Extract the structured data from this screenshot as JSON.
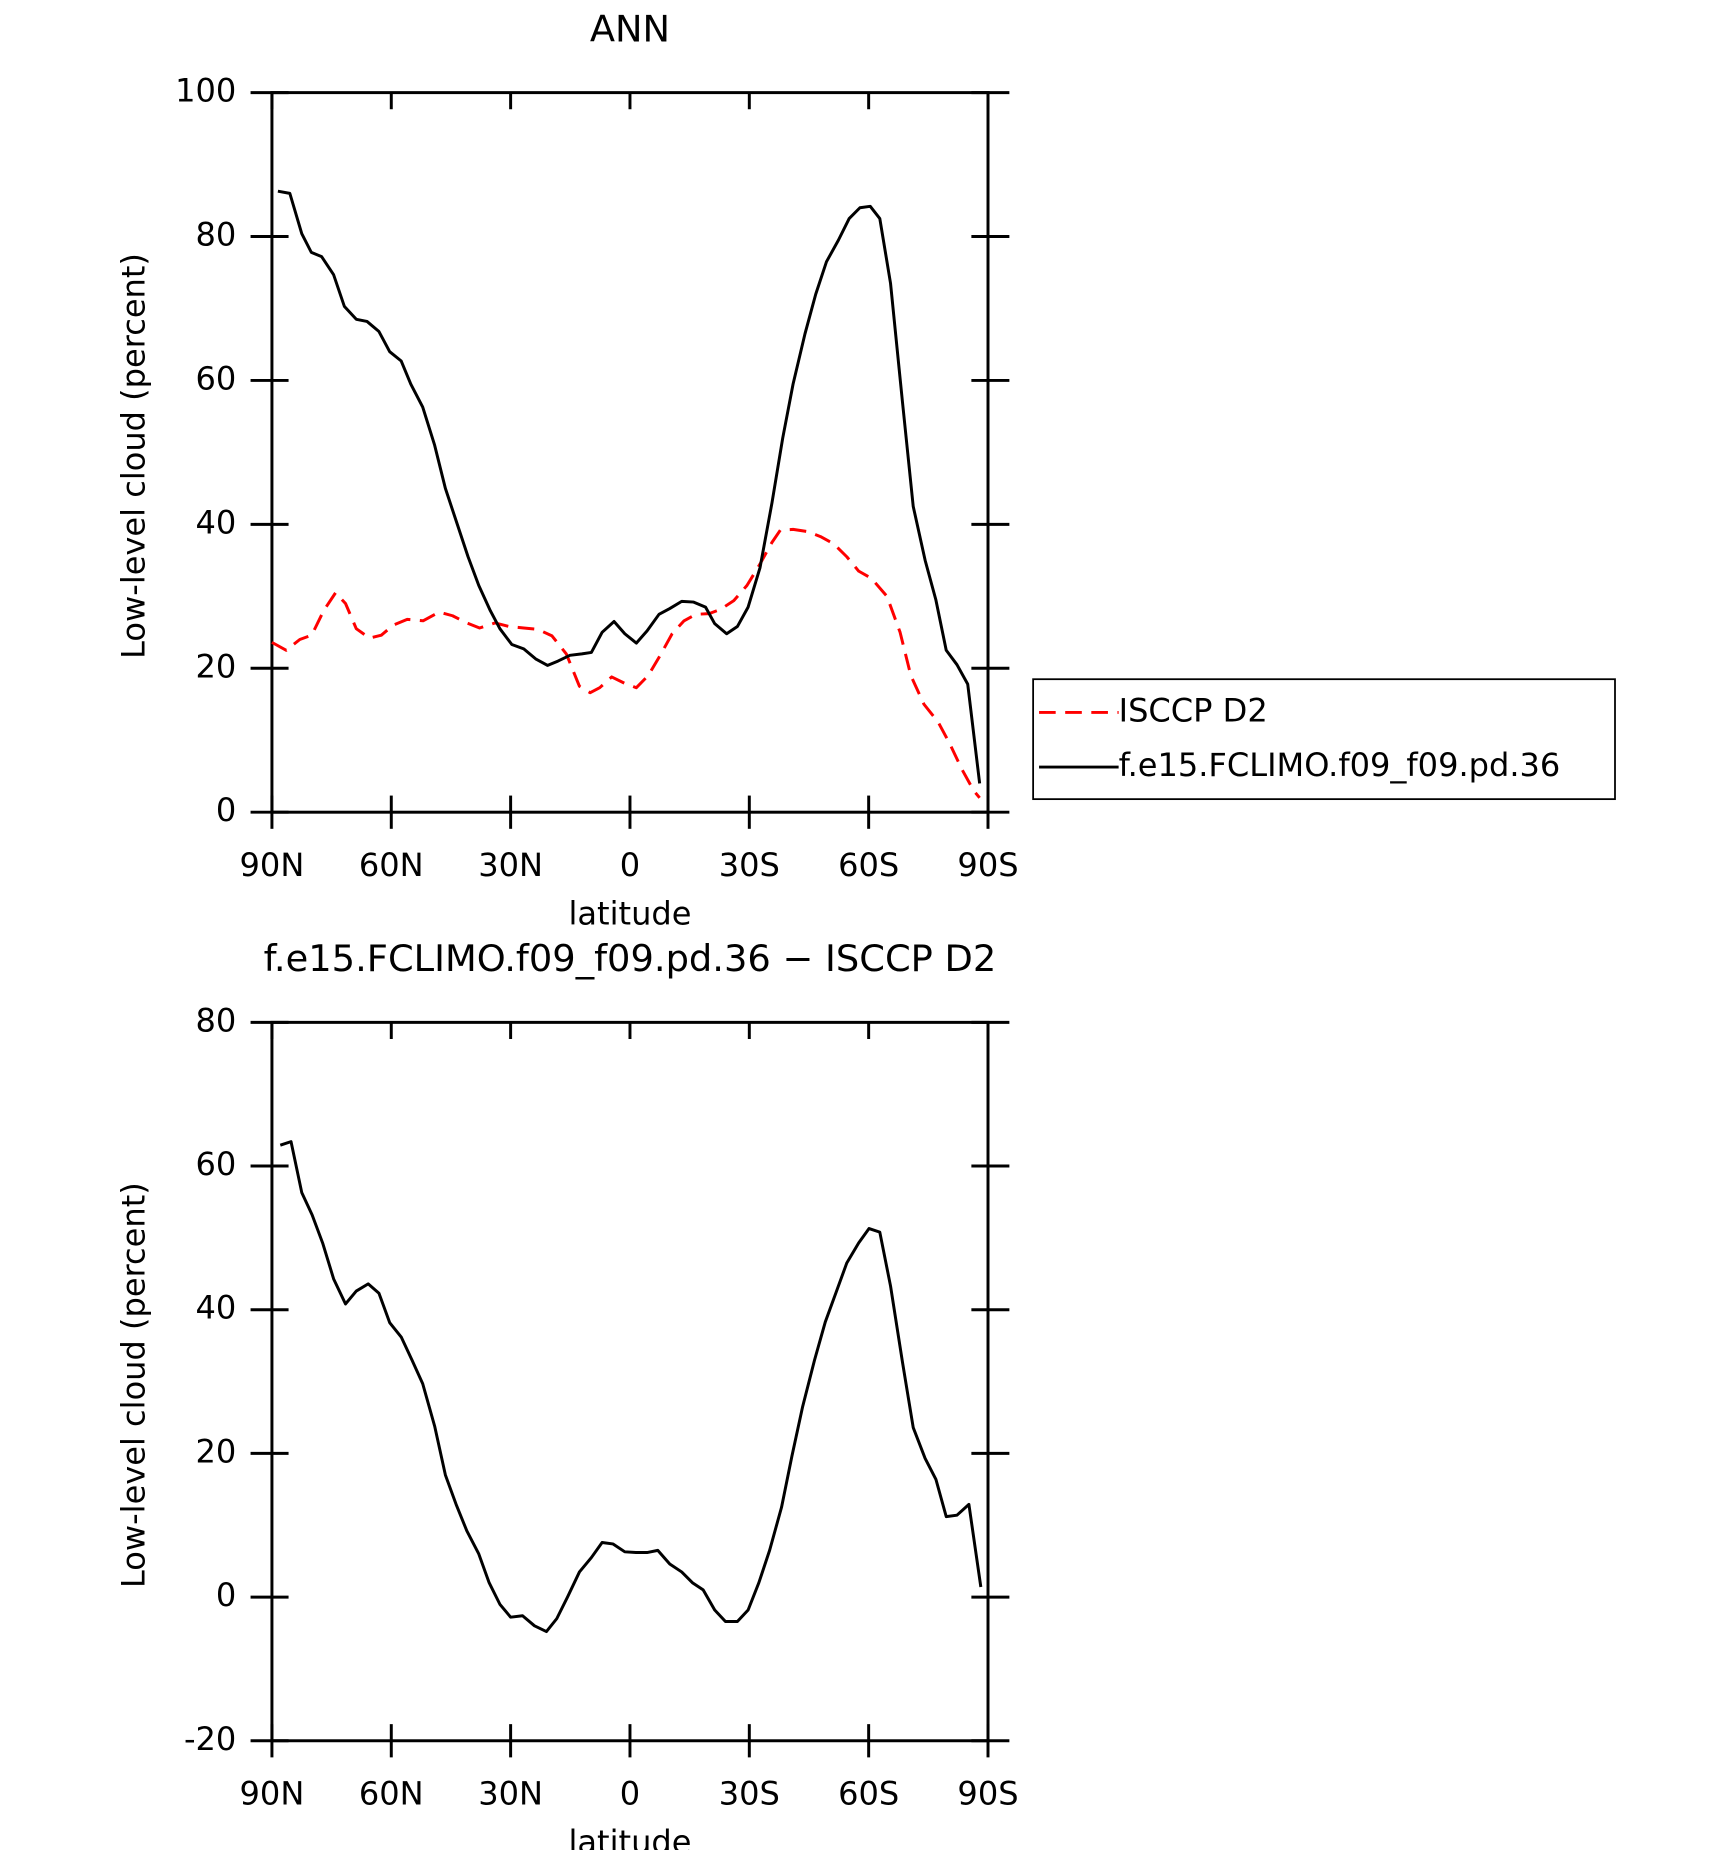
{
  "chart_data": [
    {
      "type": "line",
      "title": "ANN",
      "xlabel": "latitude",
      "ylabel": "Low-level cloud (percent)",
      "xlim": [
        90,
        -90
      ],
      "xticks": [
        {
          "value": 90,
          "label": "90N"
        },
        {
          "value": 60,
          "label": "60N"
        },
        {
          "value": 30,
          "label": "30N"
        },
        0,
        {
          "value": -30,
          "label": "30S"
        },
        {
          "value": -60,
          "label": "60S"
        },
        {
          "value": -90,
          "label": "90S"
        }
      ],
      "ylim": [
        0,
        100
      ],
      "yticks": [
        0,
        20,
        40,
        60,
        80,
        100
      ],
      "legend": "right",
      "series": [
        {
          "name": "ISCCP D2",
          "color": "#ff0000",
          "style": "dashed",
          "x": [
            90,
            86.4,
            83,
            80,
            77,
            74,
            71.5,
            68.8,
            65.5,
            62.5,
            59.5,
            56,
            52,
            48,
            44.6,
            41,
            37.8,
            33.9,
            30.3,
            26.7,
            23.1,
            19.6,
            16,
            12.7,
            10,
            7.6,
            4.6,
            1.3,
            -1.6,
            -4.6,
            -7.6,
            -10.6,
            -13.6,
            -16.6,
            -19.9,
            -22.8,
            -26.1,
            -29.4,
            -32.7,
            -35.7,
            -37.8,
            -41,
            -44.6,
            -47.9,
            -51.2,
            -54.5,
            -57.5,
            -60.7,
            -64.6,
            -67.9,
            -70.6,
            -73.9,
            -77.5,
            -80.4,
            -83.4,
            -86.4,
            -87.9
          ],
          "values": [
            23.6,
            22.5,
            24,
            24.6,
            28,
            30.5,
            29,
            25.5,
            24.2,
            24.6,
            26,
            26.8,
            26.6,
            27.8,
            27.3,
            26.3,
            25.6,
            26.3,
            25.8,
            25.6,
            25.4,
            24.5,
            22,
            17.5,
            16.6,
            17.3,
            18.8,
            17.9,
            17.3,
            19,
            21.8,
            24.8,
            26.6,
            27.5,
            27.6,
            28.2,
            29.4,
            31.5,
            34.5,
            37.5,
            39.2,
            39.3,
            39,
            38.3,
            37.3,
            35.5,
            33.5,
            32.5,
            30,
            25,
            19,
            15,
            12.5,
            9.5,
            6,
            3,
            2
          ]
        },
        {
          "name": "f.e15.FCLIMO.f09_f09.pd.36",
          "color": "#000000",
          "style": "solid",
          "x": [
            88.5,
            85.5,
            82.5,
            80.1,
            77.5,
            74.5,
            71.8,
            68.8,
            66.1,
            63.1,
            60.4,
            57.5,
            55.1,
            52.1,
            49.1,
            46.4,
            43.4,
            40.7,
            38,
            35.1,
            32.7,
            29.7,
            26.7,
            23.7,
            20.7,
            18.1,
            15.1,
            12.1,
            9.7,
            7,
            4,
            1.3,
            -1.6,
            -4.3,
            -7.3,
            -10,
            -13,
            -16,
            -19,
            -21.3,
            -24.3,
            -27,
            -29.7,
            -32.7,
            -35.7,
            -38.4,
            -41,
            -44,
            -46.7,
            -49.4,
            -52.4,
            -55.1,
            -57.8,
            -60.4,
            -62.8,
            -65.5,
            -68.5,
            -71.2,
            -74.2,
            -76.9,
            -79.5,
            -82.2,
            -84.9,
            -87.9
          ],
          "values": [
            86.3,
            86,
            80.4,
            77.8,
            77.2,
            74.7,
            70.3,
            68.5,
            68.2,
            66.8,
            64,
            62.7,
            59.5,
            56.3,
            51,
            45,
            40,
            35.5,
            31.5,
            28,
            25.5,
            23.3,
            22.7,
            21.3,
            20.4,
            21,
            21.8,
            22,
            22.2,
            25,
            26.5,
            24.8,
            23.5,
            25.2,
            27.5,
            28.3,
            29.3,
            29.2,
            28.5,
            26.2,
            24.8,
            25.8,
            28.5,
            34,
            43,
            52,
            59.5,
            66.5,
            72,
            76.5,
            79.5,
            82.5,
            84,
            84.2,
            82.5,
            73.5,
            57,
            42.5,
            35,
            29.5,
            22.5,
            20.5,
            17.8,
            4
          ]
        }
      ]
    },
    {
      "type": "line",
      "title": "f.e15.FCLIMO.f09_f09.pd.36 − ISCCP D2",
      "xlabel": "latitude",
      "ylabel": "Low-level cloud (percent)",
      "xlim": [
        90,
        -90
      ],
      "xticks": [
        {
          "value": 90,
          "label": "90N"
        },
        {
          "value": 60,
          "label": "60N"
        },
        {
          "value": 30,
          "label": "30N"
        },
        0,
        {
          "value": -30,
          "label": "30S"
        },
        {
          "value": -60,
          "label": "60S"
        },
        {
          "value": -90,
          "label": "90S"
        }
      ],
      "ylim": [
        -20,
        80
      ],
      "yticks": [
        -20,
        0,
        20,
        40,
        60,
        80
      ],
      "series": [
        {
          "color": "#000000",
          "style": "solid",
          "x": [
            87.9,
            85.2,
            82.5,
            79.9,
            77.2,
            74.5,
            71.5,
            68.8,
            65.8,
            63.1,
            60.4,
            57.5,
            54.8,
            52.1,
            49.1,
            46.4,
            43.7,
            41,
            38,
            35.4,
            32.7,
            30,
            27,
            24,
            21,
            18.4,
            15.7,
            12.7,
            9.7,
            7,
            4.3,
            1.3,
            -1.6,
            -4.3,
            -7,
            -10,
            -13,
            -15.7,
            -18.4,
            -21.3,
            -24,
            -27,
            -29.7,
            -32.4,
            -35.1,
            -38.1,
            -40.7,
            -43.4,
            -46.4,
            -49.1,
            -51.8,
            -54.5,
            -57.5,
            -60.1,
            -62.8,
            -65.5,
            -68.5,
            -71.2,
            -74.2,
            -76.9,
            -79.5,
            -82.2,
            -85.2,
            -88.2
          ],
          "values": [
            62.9,
            63.4,
            56.3,
            53.2,
            49.2,
            44.3,
            40.8,
            42.6,
            43.6,
            42.3,
            38.2,
            36.2,
            33,
            29.7,
            23.8,
            17,
            12.9,
            9.2,
            6,
            2,
            -1,
            -2.8,
            -2.6,
            -4,
            -4.8,
            -3,
            0,
            3.5,
            5.5,
            7.6,
            7.4,
            6.3,
            6.2,
            6.2,
            6.5,
            4.6,
            3.5,
            2,
            1,
            -1.8,
            -3.4,
            -3.4,
            -1.8,
            2,
            6.5,
            12.5,
            19.6,
            26.5,
            33,
            38.3,
            42.4,
            46.5,
            49.3,
            51.3,
            50.8,
            43.3,
            32.7,
            23.6,
            19.3,
            16.4,
            11.2,
            11.4,
            12.9,
            1.4
          ]
        }
      ]
    }
  ]
}
